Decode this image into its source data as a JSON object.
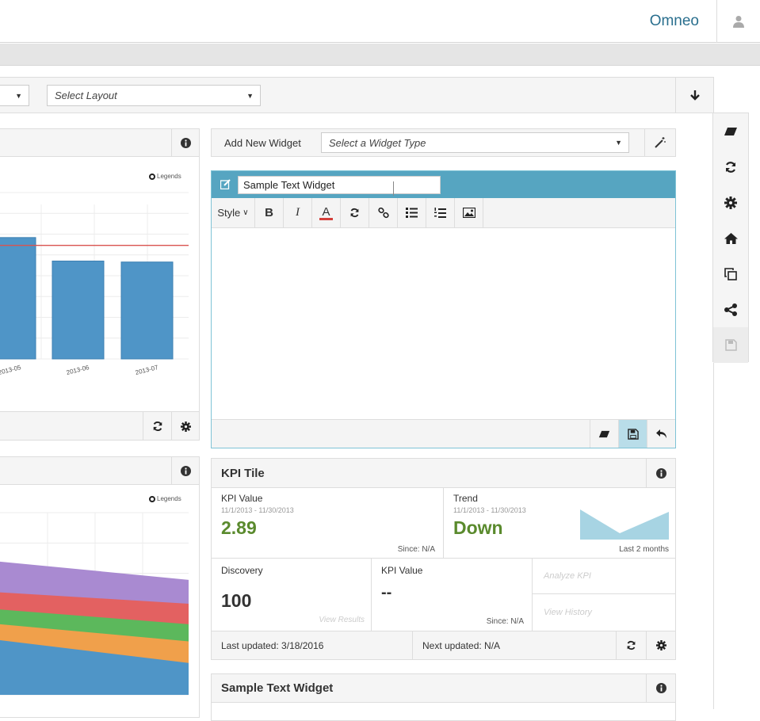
{
  "header": {
    "brand": "Omneo",
    "user_icon": "user-icon"
  },
  "toolbar": {
    "layout_select": "Select Layout",
    "download_icon": "arrow-down-icon"
  },
  "sidebar": {
    "items": [
      "eraser-icon",
      "refresh-icon",
      "gear-icon",
      "home-icon",
      "clone-icon",
      "share-icon",
      "save-icon"
    ]
  },
  "chart1": {
    "legend": "Legends",
    "chart_data": {
      "type": "bar",
      "categories": [
        "2013-05",
        "2013-06",
        "2013-07"
      ],
      "values": [
        62,
        50,
        49.5
      ],
      "ylim": [
        0,
        85
      ],
      "reference_line": 58,
      "bar_color": "#4f95c7",
      "line_color": "#d9534f"
    }
  },
  "chart2": {
    "legend": "Legends",
    "chart_data": {
      "type": "area",
      "series": [
        {
          "color": "#4f95c7",
          "start": 48,
          "end": 28
        },
        {
          "color": "#f0a04b",
          "start": 62,
          "end": 47
        },
        {
          "color": "#5cb85c",
          "start": 75,
          "end": 62
        },
        {
          "color": "#e36161",
          "start": 90,
          "end": 80
        },
        {
          "color": "#a98ad1",
          "start": 117,
          "end": 101
        }
      ],
      "ylim": [
        0,
        160
      ]
    }
  },
  "add_widget": {
    "label": "Add New Widget",
    "select": "Select a Widget Type"
  },
  "text_editor": {
    "title_value": "Sample Text Widget",
    "style_label": "Style"
  },
  "kpi": {
    "title": "KPI Tile",
    "value_cell": {
      "title": "KPI Value",
      "date": "11/1/2013 - 11/30/2013",
      "value": "2.89",
      "since": "Since: N/A"
    },
    "trend_cell": {
      "title": "Trend",
      "date": "11/1/2013 - 11/30/2013",
      "value": "Down",
      "period": "Last 2 months"
    },
    "discovery": {
      "title": "Discovery",
      "value": "100",
      "link": "View Results"
    },
    "kpi_value2": {
      "title": "KPI Value",
      "value": "--",
      "since": "Since: N/A"
    },
    "analyze": "Analyze KPI",
    "history": "View History",
    "last_updated": "Last updated: 3/18/2016",
    "next_updated": "Next updated: N/A"
  },
  "sample_widget": {
    "title": "Sample Text Widget"
  },
  "colors": {
    "accent": "#56a5c1",
    "kpi_green": "#5a8a2d",
    "brand": "#2a6f8e"
  }
}
